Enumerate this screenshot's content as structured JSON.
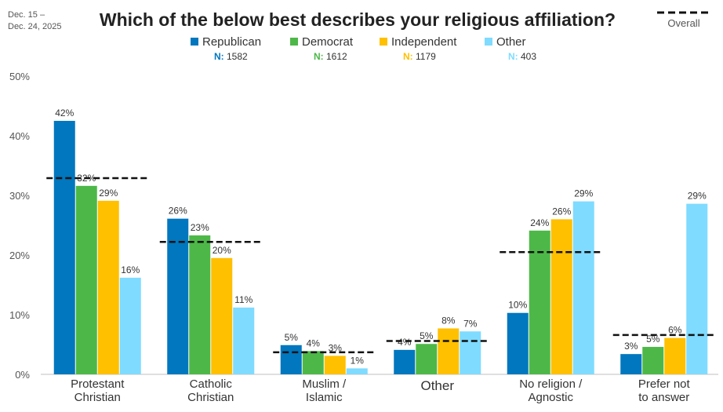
{
  "date_range": [
    "Dec. 15 –",
    "Dec. 24, 2025"
  ],
  "overall_legend_label": "Overall",
  "chart_data": {
    "type": "bar",
    "title": "Which of the below best describes your religious affiliation?",
    "categories": [
      [
        "Protestant",
        "Christian"
      ],
      [
        "Catholic",
        "Christian"
      ],
      [
        "Muslim /",
        "Islamic"
      ],
      [
        "Other"
      ],
      [
        "No religion /",
        "Agnostic"
      ],
      [
        "Prefer not",
        "to answer"
      ]
    ],
    "series": [
      {
        "name": "Republican",
        "n_label": "N:",
        "n_value": "1582",
        "color": "#0077BE",
        "values": [
          42.5,
          26.1,
          4.9,
          4.1,
          10.3,
          3.4
        ],
        "labels": [
          "42%",
          "26%",
          "5%",
          "4%",
          "10%",
          "3%"
        ]
      },
      {
        "name": "Democrat",
        "n_label": "N:",
        "n_value": "1612",
        "color": "#4DB848",
        "values": [
          31.6,
          23.3,
          3.9,
          5.1,
          24.1,
          4.6
        ],
        "labels": [
          "32%",
          "23%",
          "4%",
          "5%",
          "24%",
          "5%"
        ]
      },
      {
        "name": "Independent",
        "n_label": "N:",
        "n_value": "1179",
        "color": "#FFC000",
        "values": [
          29.1,
          19.5,
          3.1,
          7.7,
          26.0,
          6.1
        ],
        "labels": [
          "29%",
          "20%",
          "3%",
          "8%",
          "26%",
          "6%"
        ]
      },
      {
        "name": "Other",
        "n_label": "N:",
        "n_value": "403",
        "color": "#7FDBFF",
        "values": [
          16.2,
          11.2,
          1.0,
          7.2,
          29.0,
          28.6
        ],
        "labels": [
          "16%",
          "11%",
          "1%",
          "7%",
          "29%",
          "29%"
        ]
      }
    ],
    "overall": [
      32.9,
      22.2,
      3.7,
      5.6,
      20.5,
      6.6
    ],
    "ylim": [
      0,
      50
    ],
    "yticks": [
      0,
      10,
      20,
      30,
      40,
      50
    ],
    "ytick_labels": [
      "0%",
      "10%",
      "20%",
      "30%",
      "40%",
      "50%"
    ],
    "grid": false,
    "legend_position": "top-center"
  }
}
